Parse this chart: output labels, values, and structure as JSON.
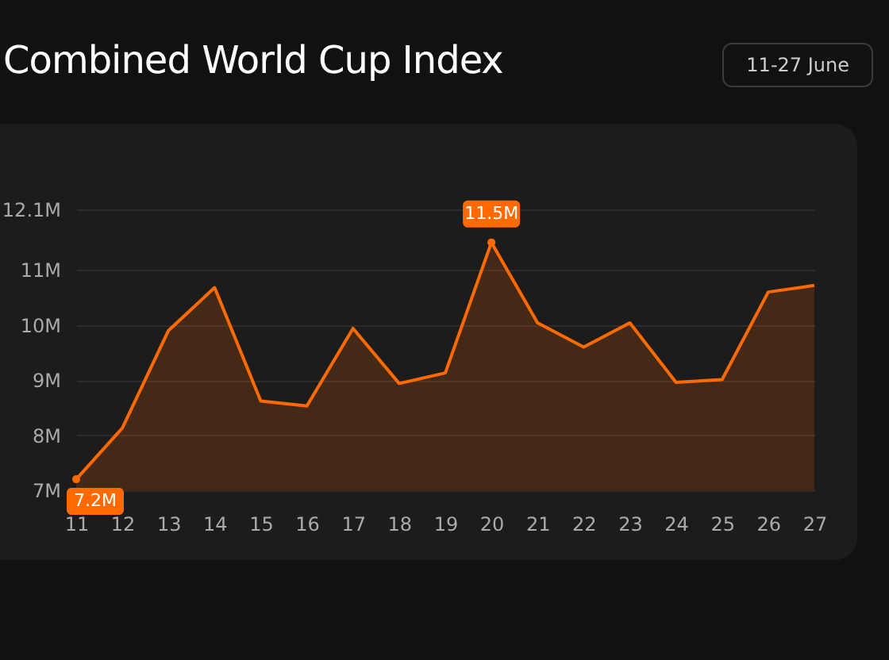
{
  "chart_data": {
    "type": "area",
    "title": "Combined World Cup Index",
    "subtitle": "11-27 June",
    "categories": [
      "11",
      "12",
      "13",
      "14",
      "15",
      "16",
      "17",
      "18",
      "19",
      "20",
      "21",
      "22",
      "23",
      "24",
      "25",
      "26",
      "27"
    ],
    "series": [
      {
        "color": "#ff6a00",
        "values": [
          7.2,
          8.13,
          9.9,
          10.68,
          8.62,
          8.53,
          9.94,
          8.94,
          9.13,
          11.5,
          10.04,
          9.6,
          10.04,
          8.96,
          9.01,
          10.6,
          10.72
        ],
        "value_labels": [
          "7.2M",
          null,
          null,
          null,
          null,
          null,
          null,
          null,
          null,
          "11.5M",
          null,
          null,
          null,
          null,
          null,
          null,
          null
        ]
      }
    ],
    "ylim": [
      7,
      12.1
    ],
    "yticks": [
      {
        "value": 7,
        "label": "7M"
      },
      {
        "value": 8,
        "label": "8M"
      },
      {
        "value": 9,
        "label": "9M"
      },
      {
        "value": 10,
        "label": "10M"
      },
      {
        "value": 11,
        "label": "11M"
      },
      {
        "value": 12.1,
        "label": "12.1M"
      }
    ],
    "grid": "y",
    "marker": "none"
  }
}
